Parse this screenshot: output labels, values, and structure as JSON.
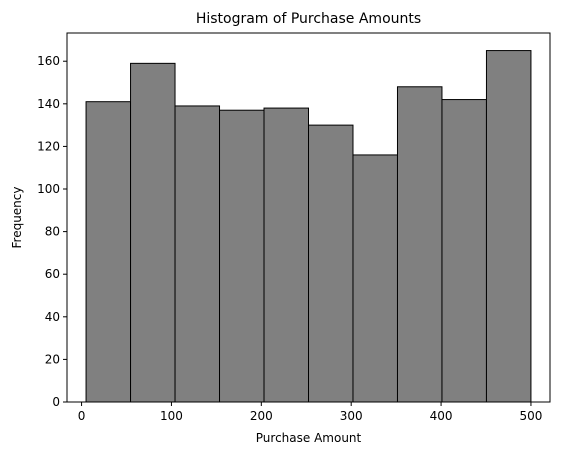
{
  "chart_data": {
    "type": "bar",
    "title": "Histogram of Purchase Amounts",
    "xlabel": "Purchase Amount",
    "ylabel": "Frequency",
    "bins": [
      {
        "start": 5,
        "end": 54.5,
        "count": 141
      },
      {
        "start": 54.5,
        "end": 104,
        "count": 159
      },
      {
        "start": 104,
        "end": 153.5,
        "count": 139
      },
      {
        "start": 153.5,
        "end": 203,
        "count": 137
      },
      {
        "start": 203,
        "end": 252.5,
        "count": 138
      },
      {
        "start": 252.5,
        "end": 302,
        "count": 130
      },
      {
        "start": 302,
        "end": 351.5,
        "count": 116
      },
      {
        "start": 351.5,
        "end": 401,
        "count": 148
      },
      {
        "start": 401,
        "end": 450.5,
        "count": 142
      },
      {
        "start": 450.5,
        "end": 500,
        "count": 165
      }
    ],
    "xlim": [
      -16.2,
      521.2
    ],
    "ylim": [
      0,
      173.25
    ],
    "xticks": [
      0,
      100,
      200,
      300,
      400,
      500
    ],
    "yticks": [
      0,
      20,
      40,
      60,
      80,
      100,
      120,
      140,
      160
    ],
    "bar_color": "#808080",
    "edge_color": "#000000",
    "grid": false,
    "legend": "none"
  }
}
